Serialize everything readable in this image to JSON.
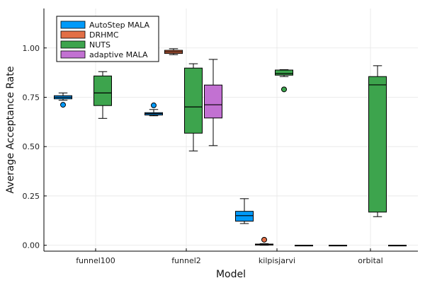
{
  "chart_data": {
    "type": "box",
    "xlabel": "Model",
    "ylabel": "Average Acceptance Rate",
    "categories": [
      "funnel100",
      "funnel2",
      "kilpisjarvi",
      "orbital"
    ],
    "yticks": [
      "0.00",
      "0.25",
      "0.50",
      "0.75",
      "1.00"
    ],
    "ylim": [
      -0.03,
      1.2
    ],
    "grid": true,
    "legend_position": "top-left",
    "series": [
      {
        "name": "AutoStep MALA",
        "color": "#009af9",
        "boxes": [
          {
            "category": "funnel100",
            "min": 0.735,
            "q1": 0.742,
            "median": 0.75,
            "q3": 0.758,
            "max": 0.772,
            "outliers": [
              0.712
            ]
          },
          {
            "category": "funnel2",
            "min": 0.656,
            "q1": 0.66,
            "median": 0.667,
            "q3": 0.672,
            "max": 0.688,
            "outliers": [
              0.709
            ]
          },
          {
            "category": "kilpisjarvi",
            "min": 0.11,
            "q1": 0.122,
            "median": 0.15,
            "q3": 0.172,
            "max": 0.236,
            "outliers": []
          },
          {
            "category": "orbital",
            "min": 0.0,
            "q1": 0.0,
            "median": 0.0,
            "q3": 0.0,
            "max": 0.0,
            "outliers": []
          }
        ]
      },
      {
        "name": "DRHMC",
        "color": "#e26f46",
        "boxes": [
          {
            "category": "funnel100",
            "empty": true
          },
          {
            "category": "funnel2",
            "min": 0.966,
            "q1": 0.972,
            "median": 0.98,
            "q3": 0.988,
            "max": 0.996,
            "outliers": []
          },
          {
            "category": "kilpisjarvi",
            "min": 0.0,
            "q1": 0.001,
            "median": 0.003,
            "q3": 0.006,
            "max": 0.008,
            "outliers": [
              0.028
            ]
          },
          {
            "category": "orbital",
            "empty": true
          }
        ]
      },
      {
        "name": "NUTS",
        "color": "#3da44d",
        "boxes": [
          {
            "category": "funnel100",
            "min": 0.643,
            "q1": 0.708,
            "median": 0.772,
            "q3": 0.858,
            "max": 0.88,
            "outliers": []
          },
          {
            "category": "funnel2",
            "min": 0.478,
            "q1": 0.568,
            "median": 0.701,
            "q3": 0.898,
            "max": 0.92,
            "outliers": []
          },
          {
            "category": "kilpisjarvi",
            "min": 0.855,
            "q1": 0.862,
            "median": 0.87,
            "q3": 0.888,
            "max": 0.89,
            "outliers": [
              0.79
            ]
          },
          {
            "category": "orbital",
            "min": 0.145,
            "q1": 0.168,
            "median": 0.813,
            "q3": 0.855,
            "max": 0.91,
            "outliers": []
          }
        ]
      },
      {
        "name": "adaptive MALA",
        "color": "#c271d2",
        "boxes": [
          {
            "category": "funnel100",
            "empty": true
          },
          {
            "category": "funnel2",
            "min": 0.505,
            "q1": 0.645,
            "median": 0.712,
            "q3": 0.812,
            "max": 0.942,
            "outliers": []
          },
          {
            "category": "kilpisjarvi",
            "min": 0.0,
            "q1": 0.0,
            "median": 0.0,
            "q3": 0.0,
            "max": 0.0,
            "outliers": []
          },
          {
            "category": "orbital",
            "min": 0.0,
            "q1": 0.0,
            "median": 0.0,
            "q3": 0.0,
            "max": 0.0,
            "outliers": []
          }
        ]
      }
    ]
  }
}
